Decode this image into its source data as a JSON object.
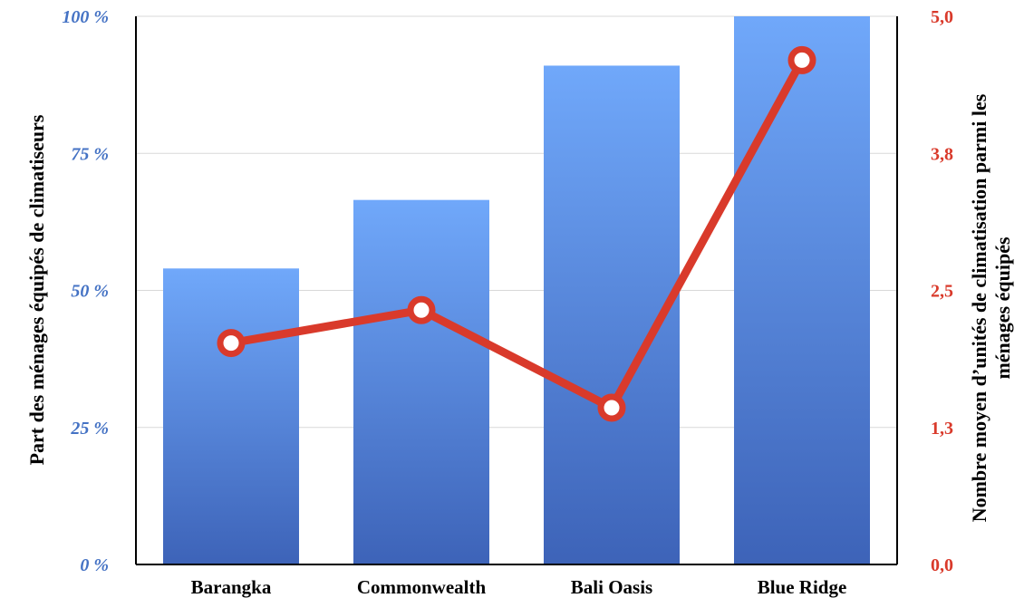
{
  "chart_data": {
    "type": "bar",
    "categories": [
      "Barangka",
      "Commonwealth",
      "Bali Oasis",
      "Blue Ridge"
    ],
    "series": [
      {
        "type": "bar",
        "axis": "left",
        "values": [
          54,
          66.5,
          91,
          100
        ]
      },
      {
        "type": "line",
        "axis": "right",
        "values": [
          2.02,
          2.32,
          1.43,
          4.6
        ]
      }
    ],
    "ylabel": "Part des ménages équipés de climatiseurs",
    "y2label_line1": "Nombre moyen d’unités de climatisation parmi les",
    "y2label_line2": "ménages équipés",
    "ylim": [
      0,
      100
    ],
    "y2lim": [
      0,
      5
    ],
    "yticks": [
      "0 %",
      "25 %",
      "50 %",
      "75 %",
      "100 %"
    ],
    "y2ticks": [
      "0,0",
      "1,3",
      "2,5",
      "3,8",
      "5,0"
    ],
    "grid": true,
    "colors": {
      "bar_top": "#70a8fa",
      "bar_bottom": "#3d63b8",
      "line": "#d93a2b",
      "left_axis_text": "#4472c4",
      "right_axis_text": "#d93a2b",
      "grid": "#d9d9d9"
    }
  }
}
